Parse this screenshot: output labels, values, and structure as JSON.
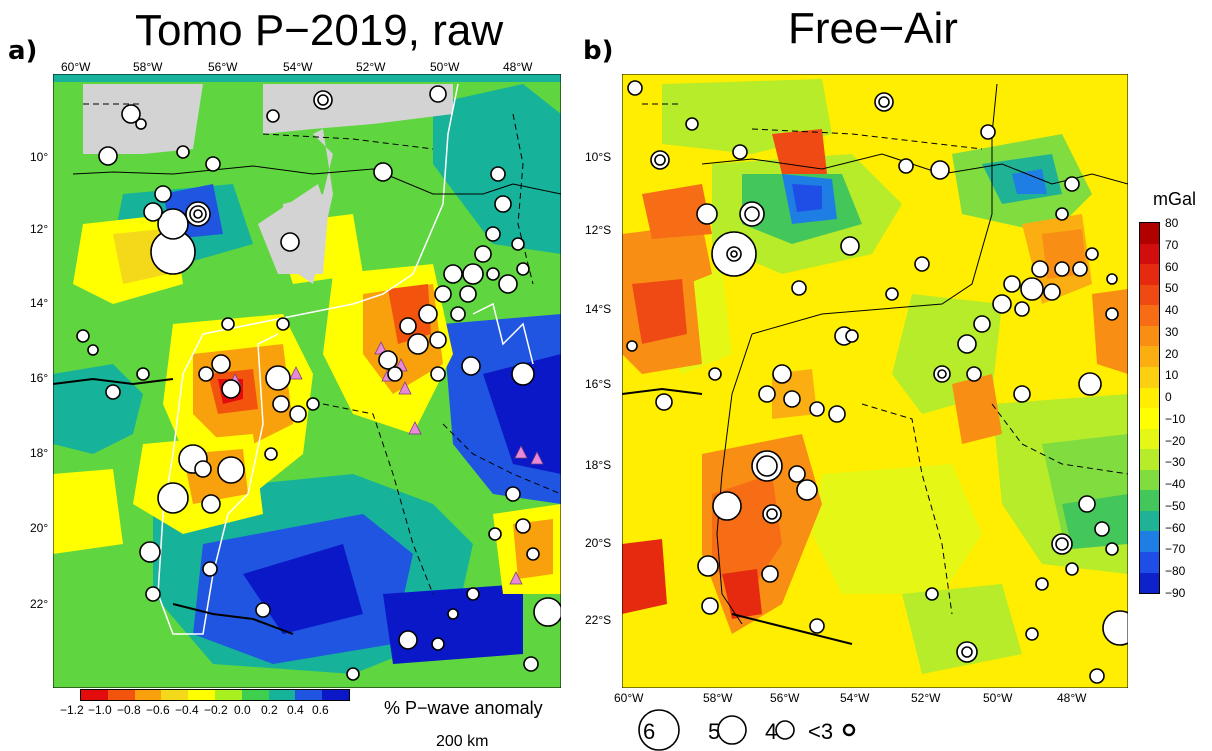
{
  "panel_a": {
    "letter": "a)",
    "title": "Tomo P−2019, raw",
    "lon_labels": [
      "60°W",
      "58°W",
      "56°W",
      "54°W",
      "52°W",
      "50°W",
      "48°W"
    ],
    "lat_labels": [
      "10°",
      "12°",
      "14°",
      "16°",
      "18°",
      "20°",
      "22°"
    ],
    "colorbar": {
      "ticks": [
        "−1.2",
        "−1.0",
        "−0.8",
        "−0.6",
        "−0.4",
        "−0.2",
        "0.0",
        "0.2",
        "0.4",
        "0.6"
      ],
      "colors": [
        "#e30b0b",
        "#f2540e",
        "#f9a10c",
        "#f4d81a",
        "#ffff00",
        "#a8f01e",
        "#3fcf4e",
        "#16b39a",
        "#1f55e0",
        "#0a18c8"
      ],
      "label": "% P−wave anomaly"
    },
    "scale_label": "200 km"
  },
  "panel_b": {
    "letter": "b)",
    "title": "Free−Air",
    "lon_labels": [
      "60°W",
      "58°W",
      "56°W",
      "54°W",
      "52°W",
      "50°W",
      "48°W"
    ],
    "lat_labels": [
      "10°S",
      "12°S",
      "14°S",
      "16°S",
      "18°S",
      "20°S",
      "22°S"
    ],
    "colorbar": {
      "unit": "mGal",
      "ticks": [
        "80",
        "70",
        "60",
        "50",
        "40",
        "30",
        "20",
        "10",
        "0",
        "−10",
        "−20",
        "−30",
        "−40",
        "−50",
        "−60",
        "−70",
        "−80",
        "−90"
      ],
      "colors": [
        "#b10000",
        "#d10d0d",
        "#e52a10",
        "#f04a14",
        "#f66d15",
        "#f98e14",
        "#fbae12",
        "#fcd010",
        "#ffee00",
        "#ffff00",
        "#e4f715",
        "#b6ec2a",
        "#80dc3f",
        "#43c75a",
        "#1fb294",
        "#1f7ee4",
        "#1f4ee6",
        "#0d22c8"
      ]
    },
    "legend": {
      "magnitudes": [
        "6",
        "5",
        "4",
        "<3"
      ]
    }
  }
}
